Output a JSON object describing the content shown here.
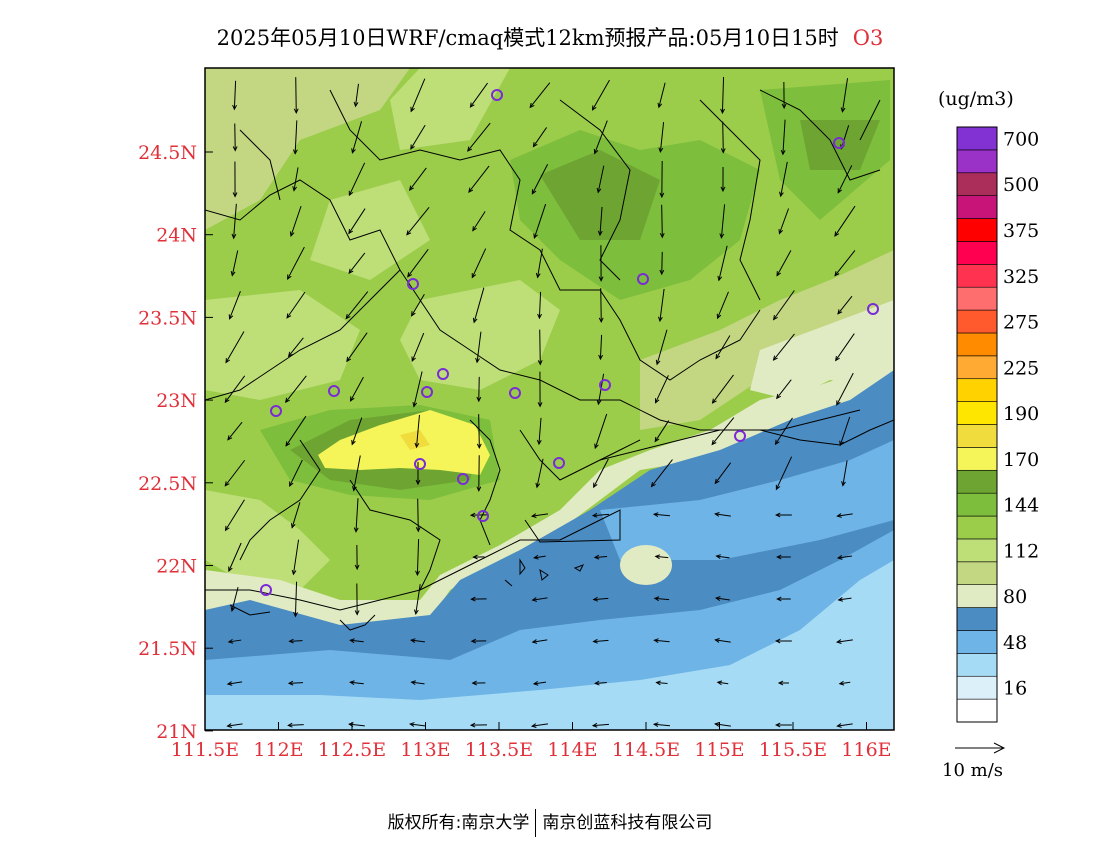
{
  "title": {
    "text": "2025年05月10日WRF/cmaq模式12km预报产品:05月10日15时",
    "pollutant": "O3"
  },
  "legend": {
    "unit": "(ug/m3)",
    "bins": [
      {
        "label": "",
        "color": "#ffffff"
      },
      {
        "label": "16",
        "color": "#dcf0fa"
      },
      {
        "label": "",
        "color": "#a5dbf5"
      },
      {
        "label": "48",
        "color": "#6eb4e6"
      },
      {
        "label": "",
        "color": "#4b8cc3"
      },
      {
        "label": "80",
        "color": "#e1ebc3"
      },
      {
        "label": "",
        "color": "#c3d782"
      },
      {
        "label": "112",
        "color": "#bedf78"
      },
      {
        "label": "",
        "color": "#9bcd4b"
      },
      {
        "label": "144",
        "color": "#7dbe3c"
      },
      {
        "label": "",
        "color": "#6ea532"
      },
      {
        "label": "170",
        "color": "#f5f55a"
      },
      {
        "label": "",
        "color": "#f0dc3c"
      },
      {
        "label": "190",
        "color": "#ffe600"
      },
      {
        "label": "",
        "color": "#ffd200"
      },
      {
        "label": "225",
        "color": "#ffaa32"
      },
      {
        "label": "",
        "color": "#ff8c00"
      },
      {
        "label": "275",
        "color": "#ff5a2d"
      },
      {
        "label": "",
        "color": "#ff6e6e"
      },
      {
        "label": "325",
        "color": "#ff3250"
      },
      {
        "label": "",
        "color": "#ff0050"
      },
      {
        "label": "375",
        "color": "#ff0000"
      },
      {
        "label": "",
        "color": "#c81478"
      },
      {
        "label": "500",
        "color": "#aa2d5a"
      },
      {
        "label": "",
        "color": "#9b32c8"
      },
      {
        "label": "700",
        "color": "#8232d2"
      }
    ]
  },
  "axes": {
    "x_ticks": [
      "111.5E",
      "112E",
      "112.5E",
      "113E",
      "113.5E",
      "114E",
      "114.5E",
      "115E",
      "115.5E",
      "116E"
    ],
    "y_ticks": [
      "24.5N",
      "24N",
      "23.5N",
      "23N",
      "22.5N",
      "22N",
      "21.5N",
      "21N"
    ],
    "tick_color": "#e0303a"
  },
  "wind_reference": {
    "label": "10 m/s"
  },
  "footer": {
    "left": "版权所有:南京大学",
    "right": "南京创蓝科技有限公司"
  }
}
